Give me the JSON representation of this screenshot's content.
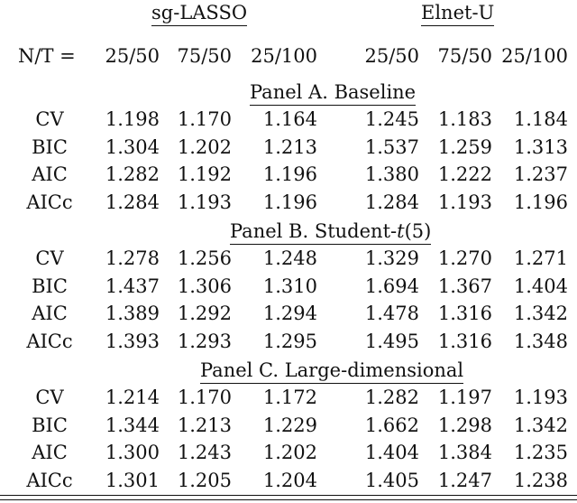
{
  "header": {
    "groups": [
      "sg-LASSO",
      "Elnet-U"
    ],
    "row_label": "N/T =",
    "columns": [
      "25/50",
      "75/50",
      "25/100",
      "25/50",
      "75/50",
      "25/100"
    ]
  },
  "panels": [
    {
      "title_prefix": "Panel A. Baseline",
      "title_italic": "",
      "title_suffix": "",
      "rows": [
        {
          "label": "CV",
          "values": [
            "1.198",
            "1.170",
            "1.164",
            "1.245",
            "1.183",
            "1.184"
          ]
        },
        {
          "label": "BIC",
          "values": [
            "1.304",
            "1.202",
            "1.213",
            "1.537",
            "1.259",
            "1.313"
          ]
        },
        {
          "label": "AIC",
          "values": [
            "1.282",
            "1.192",
            "1.196",
            "1.380",
            "1.222",
            "1.237"
          ]
        },
        {
          "label": "AICc",
          "values": [
            "1.284",
            "1.193",
            "1.196",
            "1.284",
            "1.193",
            "1.196"
          ]
        }
      ]
    },
    {
      "title_prefix": "Panel B. Student-",
      "title_italic": "t",
      "title_suffix": "(5)",
      "rows": [
        {
          "label": "CV",
          "values": [
            "1.278",
            "1.256",
            "1.248",
            "1.329",
            "1.270",
            "1.271"
          ]
        },
        {
          "label": "BIC",
          "values": [
            "1.437",
            "1.306",
            "1.310",
            "1.694",
            "1.367",
            "1.404"
          ]
        },
        {
          "label": "AIC",
          "values": [
            "1.389",
            "1.292",
            "1.294",
            "1.478",
            "1.316",
            "1.342"
          ]
        },
        {
          "label": "AICc",
          "values": [
            "1.393",
            "1.293",
            "1.295",
            "1.495",
            "1.316",
            "1.348"
          ]
        }
      ]
    },
    {
      "title_prefix": "Panel C. Large-dimensional",
      "title_italic": "",
      "title_suffix": "",
      "rows": [
        {
          "label": "CV",
          "values": [
            "1.214",
            "1.170",
            "1.172",
            "1.282",
            "1.197",
            "1.193"
          ]
        },
        {
          "label": "BIC",
          "values": [
            "1.344",
            "1.213",
            "1.229",
            "1.662",
            "1.298",
            "1.342"
          ]
        },
        {
          "label": "AIC",
          "values": [
            "1.300",
            "1.243",
            "1.202",
            "1.404",
            "1.384",
            "1.235"
          ]
        },
        {
          "label": "AICc",
          "values": [
            "1.301",
            "1.205",
            "1.204",
            "1.405",
            "1.247",
            "1.238"
          ]
        }
      ]
    }
  ]
}
